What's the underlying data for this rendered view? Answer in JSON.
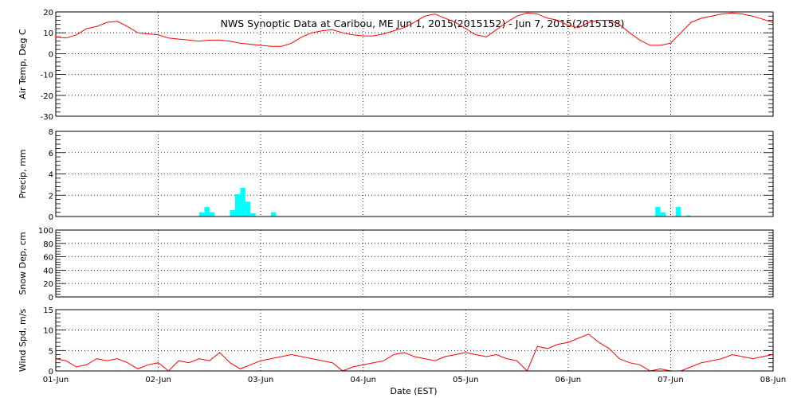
{
  "title": "NWS Synoptic Data at Caribou, ME   Jun  1, 2015(2015152) - Jun  7, 2015(2015158)",
  "xlabel": "Date (EST)",
  "x_ticks": [
    "01-Jun",
    "02-Jun",
    "03-Jun",
    "04-Jun",
    "05-Jun",
    "06-Jun",
    "07-Jun",
    "08-Jun"
  ],
  "colors": {
    "temp": "#ff0000",
    "precip": "#00ffff",
    "wind": "#ff0000",
    "frame": "#000000"
  },
  "chart_data": [
    {
      "type": "line",
      "name": "air-temp",
      "ylabel": "Air Temp, Deg C",
      "ylim": [
        -30,
        20
      ],
      "yticks": [
        20,
        10,
        0,
        -10,
        -20,
        -30
      ],
      "xlim": [
        0,
        7
      ],
      "grid": true,
      "x": [
        0.0,
        0.1,
        0.2,
        0.3,
        0.4,
        0.5,
        0.6,
        0.7,
        0.8,
        0.9,
        1.0,
        1.1,
        1.2,
        1.3,
        1.4,
        1.5,
        1.6,
        1.7,
        1.8,
        1.9,
        2.0,
        2.1,
        2.2,
        2.3,
        2.4,
        2.5,
        2.6,
        2.7,
        2.8,
        2.9,
        3.0,
        3.1,
        3.2,
        3.3,
        3.4,
        3.5,
        3.6,
        3.7,
        3.8,
        3.9,
        4.0,
        4.1,
        4.2,
        4.3,
        4.4,
        4.5,
        4.6,
        4.7,
        4.8,
        4.9,
        5.0,
        5.1,
        5.2,
        5.3,
        5.4,
        5.5,
        5.6,
        5.7,
        5.8,
        5.9,
        6.0,
        6.1,
        6.2,
        6.3,
        6.4,
        6.5,
        6.6,
        6.7,
        6.8,
        6.9,
        7.0
      ],
      "y": [
        8,
        7.5,
        9,
        12,
        13,
        15,
        15.5,
        13,
        10,
        9.5,
        9,
        7.5,
        7,
        6.5,
        6,
        6.5,
        6.5,
        6,
        5,
        4.5,
        4,
        3.5,
        3.5,
        5,
        8,
        10,
        11,
        11.5,
        10,
        9,
        8.5,
        8.5,
        9.5,
        11,
        12.5,
        15,
        18,
        19,
        17,
        15,
        12,
        9,
        8,
        11.5,
        15,
        18,
        19.5,
        19,
        17,
        16,
        13.5,
        12.5,
        15,
        16,
        16,
        14,
        10,
        6.5,
        4,
        4,
        5,
        10,
        15,
        17,
        18,
        19,
        19.5,
        19,
        18,
        16.5,
        15
      ]
    },
    {
      "type": "bar",
      "name": "precip",
      "ylabel": "Precip, mm",
      "ylim": [
        0,
        8
      ],
      "yticks": [
        0,
        2,
        4,
        6,
        8
      ],
      "xlim": [
        0,
        7
      ],
      "grid": true,
      "x": [
        1.4,
        1.45,
        1.5,
        1.7,
        1.75,
        1.8,
        1.85,
        1.9,
        2.1,
        5.85,
        5.9,
        6.05,
        6.15
      ],
      "values": [
        0.4,
        0.9,
        0.4,
        0.6,
        2.1,
        2.7,
        1.4,
        0.3,
        0.4,
        0.9,
        0.4,
        0.9,
        0.1
      ]
    },
    {
      "type": "line",
      "name": "snow-depth",
      "ylabel": "Snow Dep, cm",
      "ylim": [
        0,
        100
      ],
      "yticks": [
        0,
        20,
        40,
        60,
        80,
        100
      ],
      "xlim": [
        0,
        7
      ],
      "grid": true,
      "x": [],
      "y": []
    },
    {
      "type": "line",
      "name": "wind-speed",
      "ylabel": "Wind Spd, m/s",
      "ylim": [
        0,
        15
      ],
      "yticks": [
        0,
        5,
        10,
        15
      ],
      "xlim": [
        0,
        7
      ],
      "grid": true,
      "x": [
        0.0,
        0.1,
        0.2,
        0.3,
        0.4,
        0.5,
        0.6,
        0.7,
        0.8,
        0.9,
        1.0,
        1.1,
        1.2,
        1.3,
        1.4,
        1.5,
        1.6,
        1.7,
        1.8,
        1.9,
        2.0,
        2.1,
        2.2,
        2.3,
        2.4,
        2.5,
        2.6,
        2.7,
        2.8,
        2.9,
        3.0,
        3.1,
        3.2,
        3.3,
        3.4,
        3.5,
        3.6,
        3.7,
        3.8,
        3.9,
        4.0,
        4.1,
        4.2,
        4.3,
        4.4,
        4.5,
        4.6,
        4.7,
        4.8,
        4.9,
        5.0,
        5.1,
        5.2,
        5.3,
        5.4,
        5.5,
        5.6,
        5.7,
        5.8,
        5.9,
        6.0,
        6.1,
        6.2,
        6.3,
        6.4,
        6.5,
        6.6,
        6.7,
        6.8,
        6.9,
        7.0
      ],
      "y": [
        3,
        2.5,
        1,
        1.5,
        3,
        2.5,
        3,
        2,
        0.5,
        1.5,
        2,
        0,
        2.5,
        2,
        3,
        2.5,
        4.5,
        2,
        0.5,
        1.5,
        2.5,
        3,
        3.5,
        4,
        3.5,
        3,
        2.5,
        2,
        0,
        1,
        1.5,
        2,
        2.5,
        4,
        4.5,
        3.5,
        3,
        2.5,
        3.5,
        4,
        4.5,
        4,
        3.5,
        4,
        3,
        2.5,
        0,
        6,
        5.5,
        6.5,
        7,
        8,
        9,
        7,
        5.5,
        3,
        2,
        1.5,
        0,
        0.5,
        0,
        0,
        1,
        2,
        2.5,
        3,
        4,
        3.5,
        3,
        3.5,
        4
      ]
    }
  ]
}
